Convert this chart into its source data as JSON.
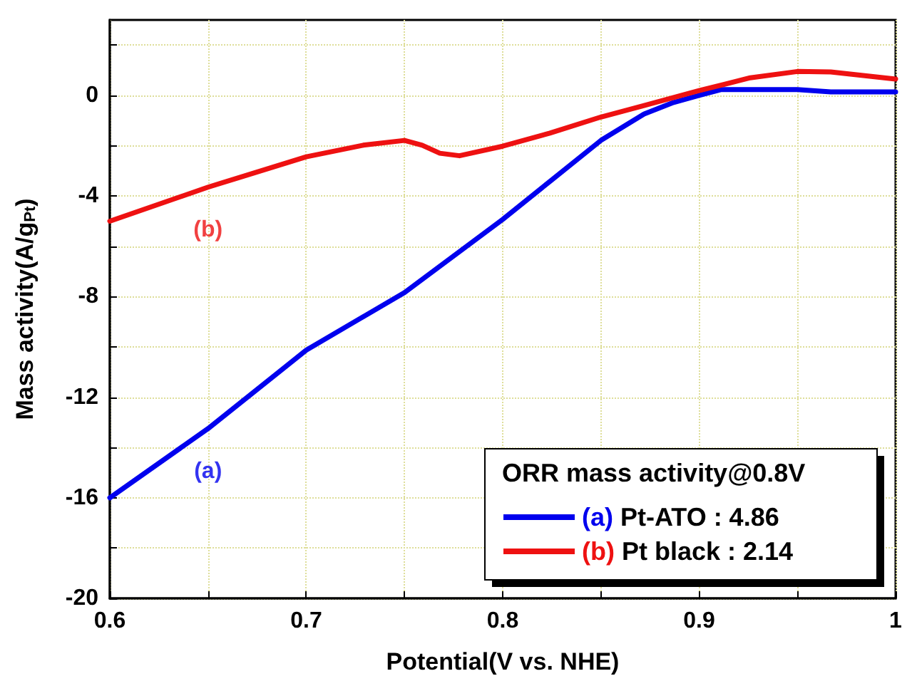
{
  "chart_data": {
    "type": "line",
    "xlabel": "Potential(V vs. NHE)",
    "ylabel": "Mass activity(A/g$_{Pt}$)",
    "legend_title": "ORR mass activity@0.8V",
    "legend": "bottom right",
    "grid": true,
    "marker": "none",
    "line_style": "solid",
    "xlim": [
      0.6,
      1.0
    ],
    "xticks": [
      0.6,
      {
        "value": 0.65,
        "label": null
      },
      0.7,
      {
        "value": 0.75,
        "label": null
      },
      0.8,
      {
        "value": 0.85,
        "label": null
      },
      0.9,
      {
        "value": 0.95,
        "label": null
      },
      1.0
    ],
    "ylim": [
      -20,
      3
    ],
    "yticks": [
      -20,
      {
        "value": -18,
        "label": null
      },
      -16,
      {
        "value": -14,
        "label": null
      },
      -12,
      {
        "value": -10,
        "label": null
      },
      -8,
      {
        "value": -6,
        "label": null
      },
      -4,
      {
        "value": -2,
        "label": null
      },
      0,
      {
        "value": 2,
        "label": null
      }
    ],
    "series": [
      {
        "name": "(a) Pt-ATO : 4.86",
        "color": "#0000ee",
        "x": [
          0.6,
          0.65,
          0.7,
          0.75,
          0.8,
          0.85,
          0.872,
          0.887,
          0.9,
          0.911,
          0.95,
          0.967,
          1.0
        ],
        "values": [
          -16,
          -13.25,
          -10.13,
          -7.84,
          -4.93,
          -1.79,
          -0.74,
          -0.28,
          0,
          0.23,
          0.23,
          0.14,
          0.14
        ]
      },
      {
        "name": "(b) Pt black : 2.14",
        "color": "#ee1111",
        "x": [
          0.6,
          0.65,
          0.7,
          0.729,
          0.75,
          0.759,
          0.768,
          0.778,
          0.8,
          0.824,
          0.85,
          0.872,
          0.9,
          0.926,
          0.95,
          0.967,
          1.0
        ],
        "values": [
          -5.0,
          -3.65,
          -2.44,
          -1.98,
          -1.79,
          -1.98,
          -2.3,
          -2.4,
          -2.02,
          -1.5,
          -0.86,
          -0.4,
          0.19,
          0.7,
          0.95,
          0.93,
          0.65
        ]
      }
    ],
    "annotations": [
      "(a)",
      "(b)"
    ]
  }
}
